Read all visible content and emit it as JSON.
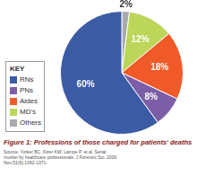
{
  "chart_data": {
    "type": "pie",
    "title": "Figure 1: Professions of those charged for patients' deaths",
    "source": "Source: Yorker BC, Kizer KW, Lampe P, et al. Serial murder by healthcare professionals. J Forensic Sci. 2006 Nov;51(6):1362-1371.",
    "legend_title": "KEY",
    "legend": "left",
    "categories": [
      "RNs",
      "PNs",
      "Aides",
      "MD's",
      "Others"
    ],
    "values": [
      60,
      8,
      18,
      12,
      2
    ],
    "value_labels": [
      "60%",
      "8%",
      "18%",
      "12%",
      "2%"
    ],
    "colors": [
      "#3b5ba5",
      "#7b5ea7",
      "#f05a28",
      "#bcd65a",
      "#a7a9ac"
    ],
    "data_labels": true
  }
}
